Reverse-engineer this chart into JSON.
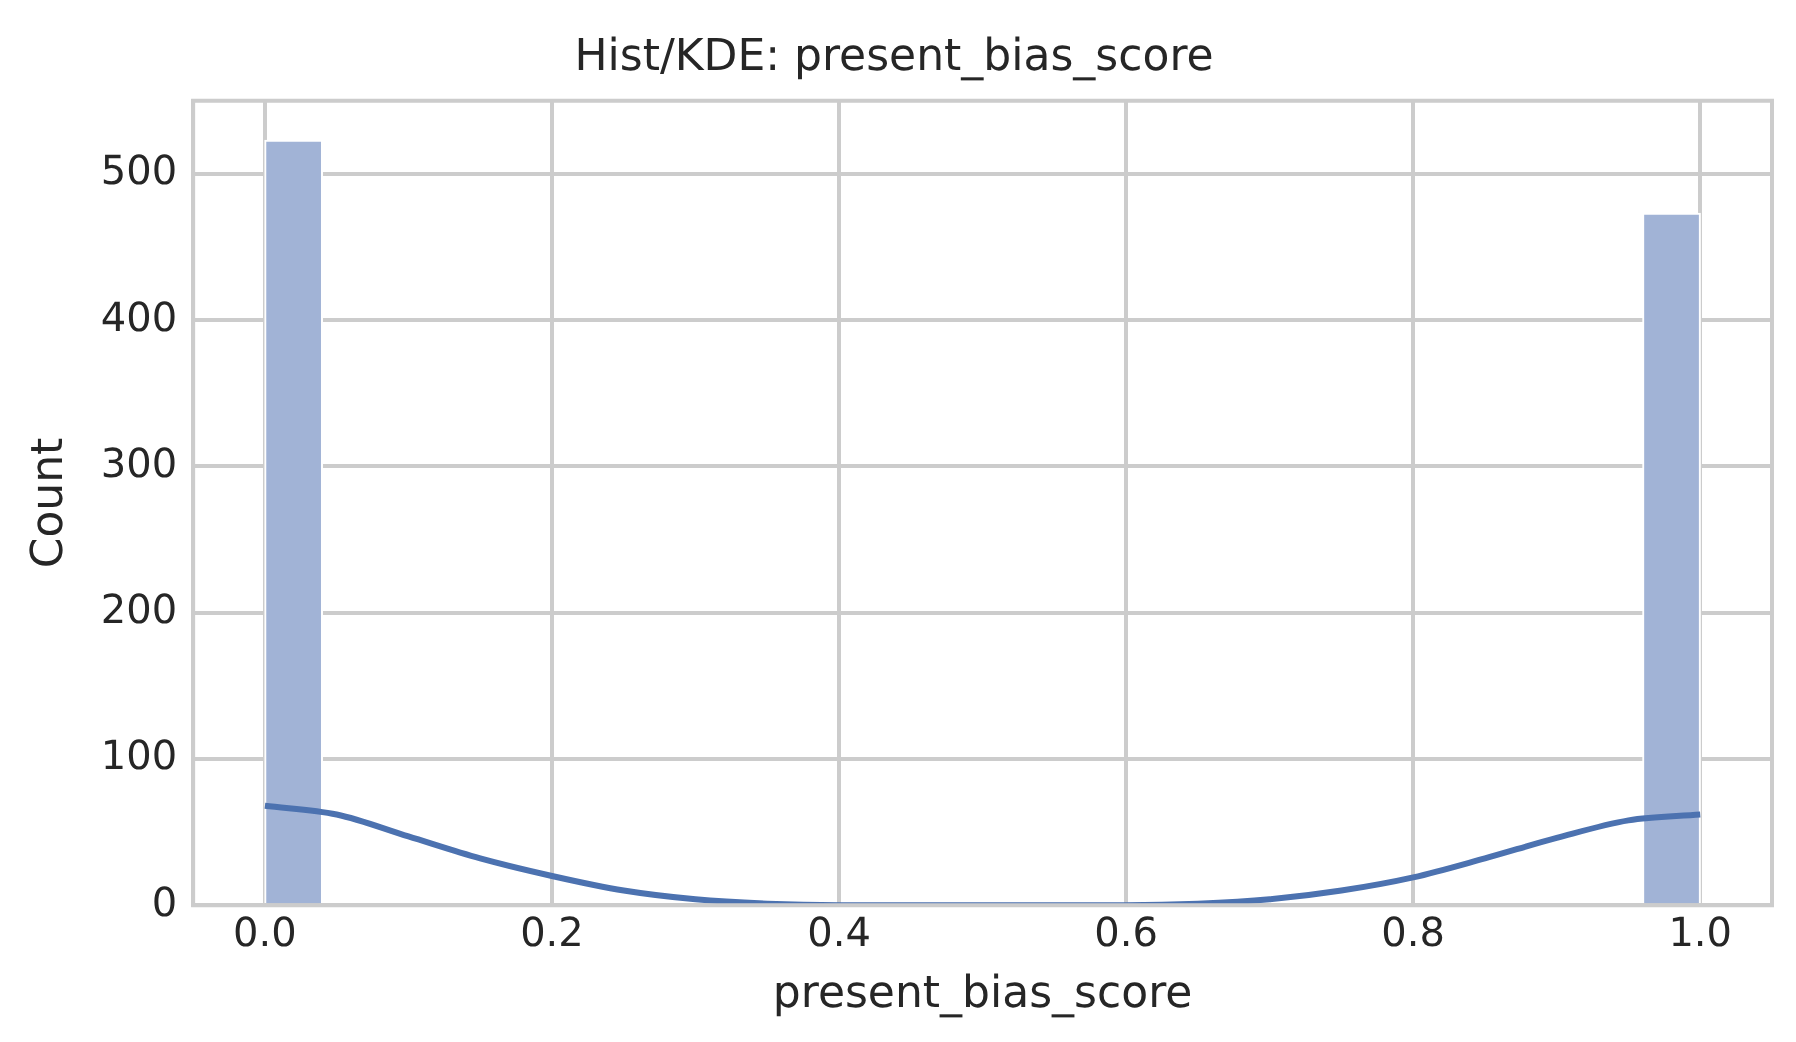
{
  "chart_data": {
    "type": "histogram",
    "title": "Hist/KDE: present_bias_score",
    "xlabel": "present_bias_score",
    "ylabel": "Count",
    "bins": [
      0,
      0.04,
      0.08,
      0.12,
      0.16,
      0.2,
      0.24,
      0.28,
      0.32,
      0.36,
      0.4,
      0.44,
      0.48,
      0.52,
      0.56,
      0.6,
      0.64,
      0.68,
      0.72,
      0.76,
      0.8,
      0.84,
      0.88,
      0.92,
      0.96,
      1.0
    ],
    "series": [
      {
        "color": "#a1b3d6",
        "values": [
          523,
          0,
          0,
          0,
          0,
          0,
          0,
          0,
          0,
          0,
          0,
          0,
          0,
          0,
          0,
          0,
          0,
          0,
          0,
          0,
          0,
          0,
          0,
          0,
          473
        ]
      },
      {
        "type": "line",
        "color": "#4c72b0",
        "x": [
          0,
          0.05,
          0.1,
          0.15,
          0.2,
          0.25,
          0.3,
          0.35,
          0.4,
          0.45,
          0.5,
          0.55,
          0.6,
          0.65,
          0.7,
          0.75,
          0.8,
          0.85,
          0.9,
          0.95,
          1.0
        ],
        "values": [
          68,
          62,
          47,
          32,
          20,
          10,
          4,
          1,
          0,
          0,
          0,
          0,
          0,
          1,
          4,
          10,
          19,
          32,
          46,
          58,
          62
        ]
      }
    ],
    "xlim": [
      -0.05,
      1.05
    ],
    "ylim": [
      0,
      550
    ],
    "xticks": [
      {
        "value": 0,
        "label": "0.0"
      },
      0.2,
      0.4,
      0.6,
      0.8,
      {
        "value": 1,
        "label": "1.0"
      }
    ],
    "yticks": [
      0,
      100,
      200,
      300,
      400,
      500
    ],
    "grid": true,
    "legend": false
  }
}
